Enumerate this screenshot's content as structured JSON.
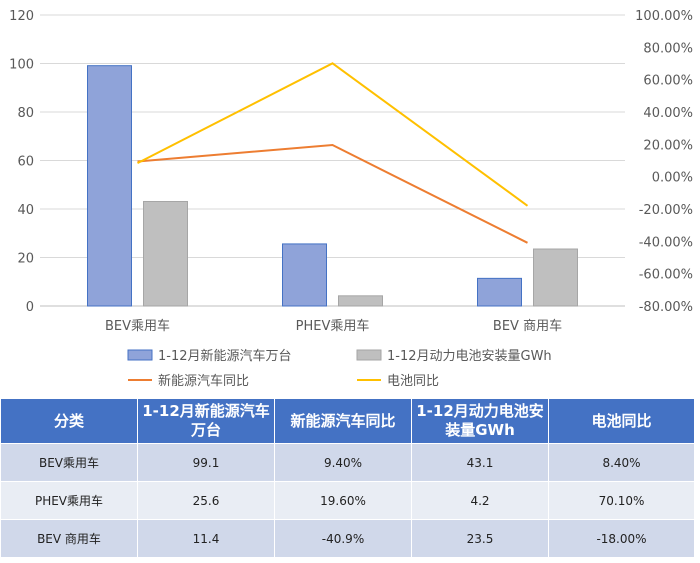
{
  "chart_data": {
    "type": "bar",
    "categories": [
      "BEV乘用车",
      "PHEV乘用车",
      "BEV 商用车"
    ],
    "series": [
      {
        "name": "1-12月新能源汽车万台",
        "kind": "bar",
        "axis": "left",
        "values": [
          99.1,
          25.6,
          11.4
        ],
        "color": "#8fa3d9"
      },
      {
        "name": "1-12月动力电池安装量GWh",
        "kind": "bar",
        "axis": "left",
        "values": [
          43.1,
          4.2,
          23.5
        ],
        "color": "#bfbfbf"
      },
      {
        "name": "新能源汽车同比",
        "kind": "line",
        "axis": "right",
        "values": [
          9.4,
          19.6,
          -40.9
        ],
        "color": "#ed7d31"
      },
      {
        "name": "电池同比",
        "kind": "line",
        "axis": "right",
        "values": [
          8.4,
          70.1,
          -18.0
        ],
        "color": "#ffc000"
      }
    ],
    "ylim_left": [
      0,
      120
    ],
    "yticks_left": [
      "0",
      "20",
      "40",
      "60",
      "80",
      "100",
      "120"
    ],
    "ylim_right": [
      -80,
      100
    ],
    "yticks_right": [
      "-80.00%",
      "-60.00%",
      "-40.00%",
      "-20.00%",
      "0.00%",
      "20.00%",
      "40.00%",
      "60.00%",
      "80.00%",
      "100.00%"
    ],
    "grid": true,
    "legend_position": "bottom"
  },
  "table": {
    "headers": [
      "分类",
      "1-12月新能源汽车万台",
      "新能源汽车同比",
      "1-12月动力电池安装量GWh",
      "电池同比"
    ],
    "rows": [
      [
        "BEV乘用车",
        "99.1",
        "9.40%",
        "43.1",
        "8.40%"
      ],
      [
        "PHEV乘用车",
        "25.6",
        "19.60%",
        "4.2",
        "70.10%"
      ],
      [
        "BEV 商用车",
        "11.4",
        "-40.9%",
        "23.5",
        "-18.00%"
      ]
    ]
  }
}
